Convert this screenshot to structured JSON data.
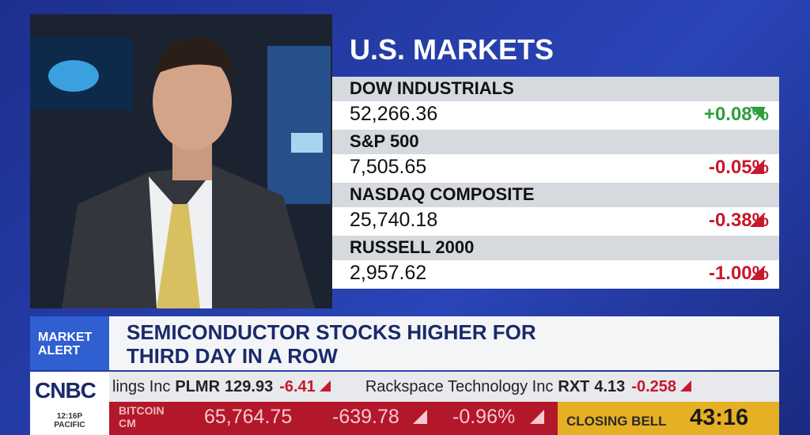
{
  "markets": {
    "title": "U.S. MARKETS",
    "rows": [
      {
        "name": "DOW INDUSTRIALS",
        "value": "52,266.36",
        "change": "+0.08%",
        "color": "#2e9e3e"
      },
      {
        "name": "S&P 500",
        "value": "7,505.65",
        "change": "-0.05%",
        "color": "#c8182c"
      },
      {
        "name": "NASDAQ COMPOSITE",
        "value": "25,740.18",
        "change": "-0.38%",
        "color": "#c8182c"
      },
      {
        "name": "RUSSELL 2000",
        "value": "2,957.62",
        "change": "-1.00%",
        "color": "#c8182c"
      }
    ]
  },
  "alert": {
    "label": [
      "MARKET",
      "ALERT"
    ],
    "headline": [
      "SEMICONDUCTOR STOCKS HIGHER FOR",
      "THIRD DAY IN A ROW"
    ]
  },
  "ticker": [
    {
      "name": "lings Inc",
      "symbol": "PLMR",
      "price": "129.93",
      "change": "-6.41"
    },
    {
      "name": "Rackspace Technology Inc",
      "symbol": "RXT",
      "price": "4.13",
      "change": "-0.258"
    }
  ],
  "logo": {
    "name": "CNBC",
    "time": "12:16P",
    "zone": "PACIFIC"
  },
  "bottom": {
    "asset": [
      "BITCOIN",
      "CM"
    ],
    "price": "65,764.75",
    "change": "-639.78",
    "percent": "-0.96%",
    "program": "CLOSING BELL",
    "clock": "43:16"
  }
}
